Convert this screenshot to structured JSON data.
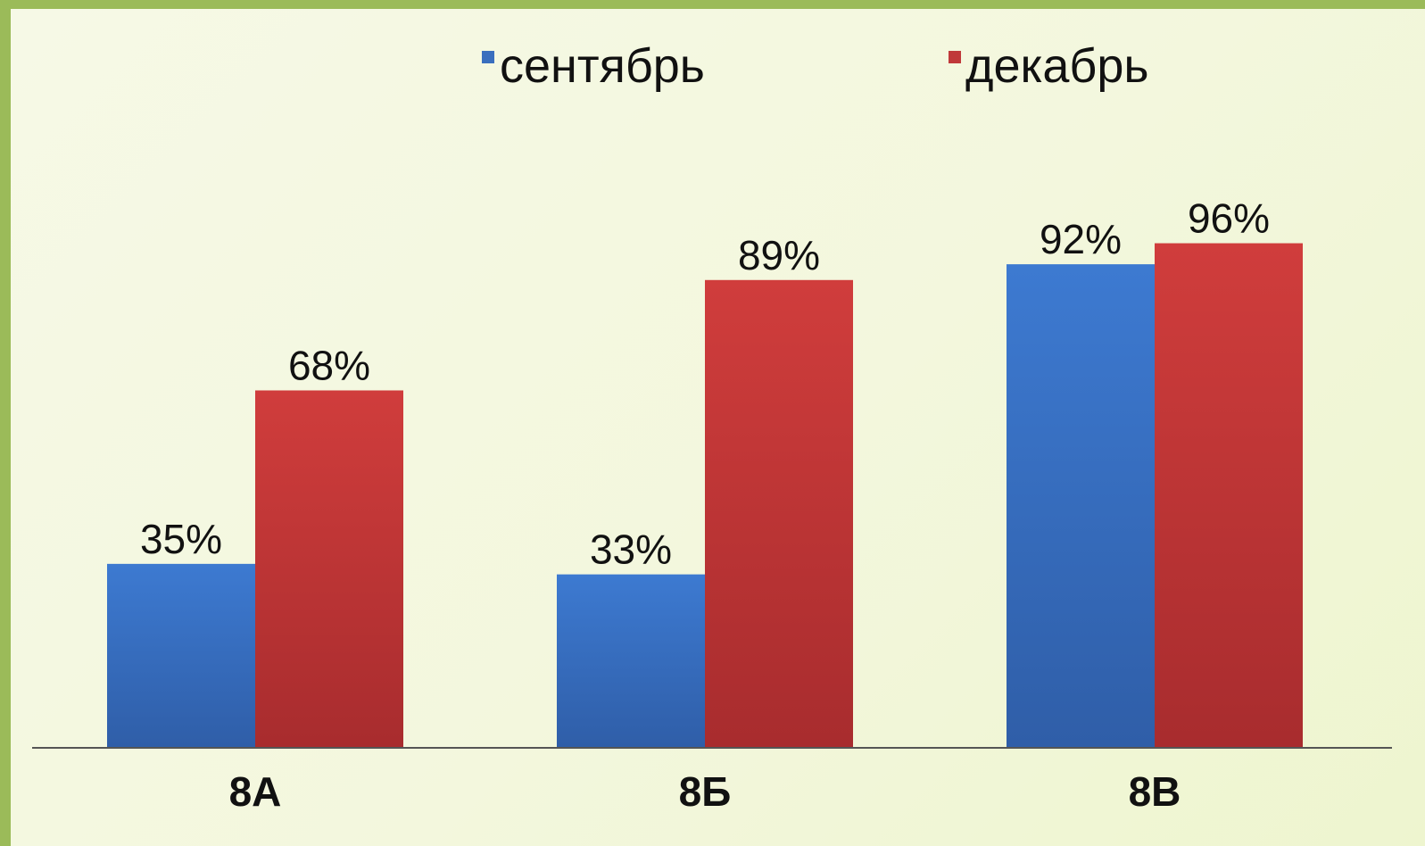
{
  "chart_data": {
    "type": "bar",
    "categories": [
      "8А",
      "8Б",
      "8В"
    ],
    "series": [
      {
        "name": "сентябрь",
        "values": [
          35,
          33,
          92
        ],
        "labels": [
          "35%",
          "33%",
          "92%"
        ],
        "color": "#3a6fbe"
      },
      {
        "name": "декабрь",
        "values": [
          68,
          89,
          96
        ],
        "labels": [
          "68%",
          "89%",
          "96%"
        ],
        "color": "#c0393a"
      }
    ],
    "ylim": [
      0,
      100
    ],
    "grid": false,
    "legend_position": "top",
    "background": "#f4f8e0",
    "border_color": "#9bbb59"
  }
}
